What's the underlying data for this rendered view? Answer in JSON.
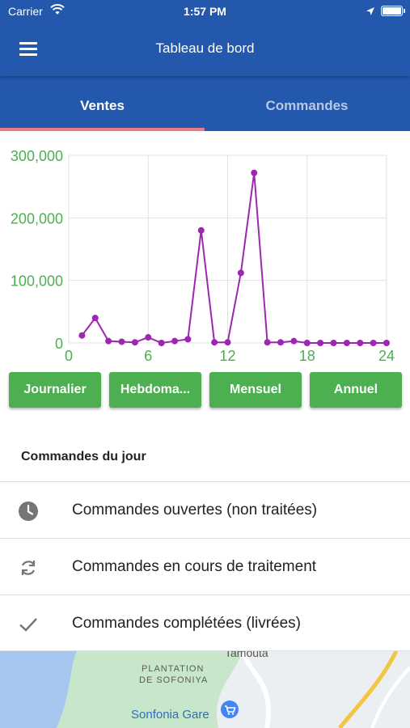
{
  "status_bar": {
    "carrier": "Carrier",
    "time": "1:57 PM"
  },
  "app_bar": {
    "title": "Tableau de bord"
  },
  "tabs": [
    {
      "label": "Ventes",
      "active": true
    },
    {
      "label": "Commandes",
      "active": false
    }
  ],
  "chart_data": {
    "type": "line",
    "x": [
      1,
      2,
      3,
      4,
      5,
      6,
      7,
      8,
      9,
      10,
      11,
      12,
      13,
      14,
      15,
      16,
      17,
      18,
      19,
      20,
      21,
      22,
      23,
      24
    ],
    "series": [
      {
        "values": [
          12000,
          40000,
          3000,
          2000,
          1000,
          9000,
          0,
          3000,
          6000,
          180000,
          1000,
          1000,
          112000,
          272000,
          1000,
          1000,
          3000,
          0,
          0,
          0,
          0,
          0,
          0,
          0
        ],
        "color": "#9c27b0"
      }
    ],
    "xlim": [
      0,
      24
    ],
    "ylim": [
      0,
      300000
    ],
    "xticks": [
      "0",
      "6",
      "12",
      "18",
      "24"
    ],
    "yticks": [
      "0",
      "100,000",
      "200,000",
      "300,000"
    ],
    "grid": true,
    "axis_label_color": "#4caf50"
  },
  "range_buttons": [
    "Journalier",
    "Hebdoma...",
    "Mensuel",
    "Annuel"
  ],
  "orders": {
    "title": "Commandes du jour",
    "items": [
      {
        "icon": "clock-icon",
        "label": "Commandes ouvertes (non traitées)"
      },
      {
        "icon": "sync-icon",
        "label": "Commandes en cours de traitement"
      },
      {
        "icon": "check-icon",
        "label": "Commandes complétées (livrées)"
      }
    ]
  },
  "map": {
    "labels": [
      "Tamouta",
      "PLANTATION",
      "DE SOFONIYA",
      "Sonfonia Gare"
    ]
  },
  "colors": {
    "primary": "#2358ad",
    "accent": "#4caf50",
    "indicator": "#e67b86",
    "series": "#9c27b0"
  }
}
